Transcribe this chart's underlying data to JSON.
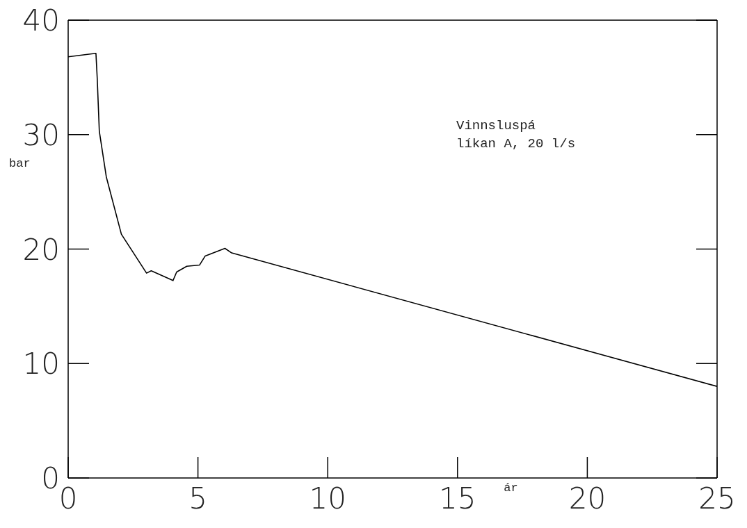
{
  "chart_data": {
    "type": "line",
    "xlabel": "ár",
    "ylabel": "bar",
    "annotations": [
      "Vinnsluspá",
      "líkan A, 20 l/s"
    ],
    "series": [
      {
        "color": "#000000",
        "x": [
          0,
          1.07,
          1.12,
          1.2,
          1.47,
          2.05,
          3.02,
          3.2,
          4.04,
          4.18,
          4.57,
          5.06,
          5.28,
          6.04,
          6.3,
          25
        ],
        "values": [
          36.8,
          37.1,
          34.9,
          30.3,
          26.3,
          21.3,
          17.9,
          18.1,
          17.25,
          18.0,
          18.5,
          18.6,
          19.4,
          20.06,
          19.66,
          8.0
        ]
      }
    ],
    "xlim": [
      0,
      25
    ],
    "xticks": [
      0,
      5,
      10,
      15,
      20,
      25
    ],
    "ylim": [
      0,
      40
    ],
    "yticks": [
      0,
      10,
      20,
      30,
      40
    ],
    "marker": "none",
    "line_style": "solid"
  }
}
